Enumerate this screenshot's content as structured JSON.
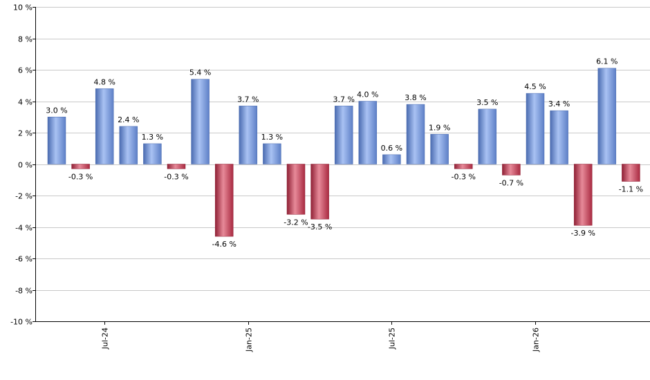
{
  "chart_data": {
    "type": "bar",
    "ylim": [
      -10,
      10
    ],
    "y_ticks": [
      10,
      8,
      6,
      4,
      2,
      0,
      -2,
      -4,
      -6,
      -8,
      -10
    ],
    "y_tick_format": "{v} %",
    "grid": true,
    "legend": "none",
    "x_ticks": [
      {
        "label": "Jul-24",
        "at_index": 2
      },
      {
        "label": "Jan-25",
        "at_index": 8
      },
      {
        "label": "Jul-25",
        "at_index": 14
      },
      {
        "label": "Jan-26",
        "at_index": 20
      }
    ],
    "values": [
      3.0,
      -0.3,
      4.8,
      2.4,
      1.3,
      -0.3,
      5.4,
      -4.6,
      3.7,
      1.3,
      -3.2,
      -3.5,
      3.7,
      4.0,
      0.6,
      3.8,
      1.9,
      -0.3,
      3.5,
      -0.7,
      4.5,
      3.4,
      -3.9,
      6.1,
      -1.1
    ],
    "data_labels": [
      "3.0 %",
      "-0.3 %",
      "4.8 %",
      "2.4 %",
      "1.3 %",
      "-0.3 %",
      "5.4 %",
      "-4.6 %",
      "3.7 %",
      "1.3 %",
      "-3.2 %",
      "-3.5 %",
      "3.7 %",
      "4.0 %",
      "0.6 %",
      "3.8 %",
      "1.9 %",
      "-0.3 %",
      "3.5 %",
      "-0.7 %",
      "4.5 %",
      "3.4 %",
      "-3.9 %",
      "6.1 %",
      "-1.1 %"
    ],
    "colors": {
      "positive": "#6f93de",
      "positive_light": "#a9c2f3",
      "positive_dark": "#4a6bb0",
      "negative": "#c4374f",
      "negative_light": "#e78a99",
      "negative_dark": "#8f2035",
      "grid": "#c8c8c8",
      "axis": "#000000"
    }
  }
}
